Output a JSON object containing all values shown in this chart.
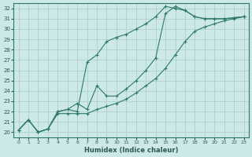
{
  "bg_color": "#cce8e8",
  "grid_color": "#aacccc",
  "line_color": "#2d7a6a",
  "xlabel": "Humidex (Indice chaleur)",
  "xlim": [
    -0.5,
    23.5
  ],
  "ylim": [
    19.5,
    32.5
  ],
  "xticks": [
    0,
    1,
    2,
    3,
    4,
    5,
    6,
    7,
    8,
    9,
    10,
    11,
    12,
    13,
    14,
    15,
    16,
    17,
    18,
    19,
    20,
    21,
    22,
    23
  ],
  "yticks": [
    20,
    21,
    22,
    23,
    24,
    25,
    26,
    27,
    28,
    29,
    30,
    31,
    32
  ],
  "line1_x": [
    0,
    1,
    2,
    3,
    4,
    5,
    6,
    7,
    8,
    9,
    10,
    11,
    12,
    13,
    14,
    15,
    16,
    17,
    18,
    19,
    20,
    21,
    22,
    23
  ],
  "line1_y": [
    20.2,
    21.2,
    20.0,
    20.3,
    22.0,
    22.2,
    22.0,
    26.8,
    27.5,
    28.8,
    29.2,
    29.5,
    30.0,
    30.5,
    31.2,
    32.2,
    32.0,
    31.8,
    31.2,
    31.0,
    31.0,
    31.0,
    31.1,
    31.2
  ],
  "line2_x": [
    0,
    1,
    2,
    3,
    4,
    5,
    6,
    7,
    8,
    9,
    10,
    11,
    12,
    13,
    14,
    15,
    16,
    17,
    18,
    19,
    20,
    21,
    22,
    23
  ],
  "line2_y": [
    20.2,
    21.2,
    20.0,
    20.3,
    22.0,
    22.2,
    22.8,
    22.2,
    24.5,
    23.5,
    23.5,
    24.2,
    25.0,
    26.0,
    27.2,
    31.5,
    32.2,
    31.8,
    31.2,
    31.0,
    31.0,
    31.0,
    31.1,
    31.2
  ],
  "line3_x": [
    0,
    1,
    2,
    3,
    4,
    5,
    6,
    7,
    8,
    9,
    10,
    11,
    12,
    13,
    14,
    15,
    16,
    17,
    18,
    19,
    20,
    21,
    22,
    23
  ],
  "line3_y": [
    20.2,
    21.2,
    20.0,
    20.3,
    21.8,
    21.8,
    21.8,
    21.8,
    22.2,
    22.5,
    22.8,
    23.2,
    23.8,
    24.5,
    25.2,
    26.2,
    27.5,
    28.8,
    29.8,
    30.2,
    30.5,
    30.8,
    31.0,
    31.2
  ]
}
